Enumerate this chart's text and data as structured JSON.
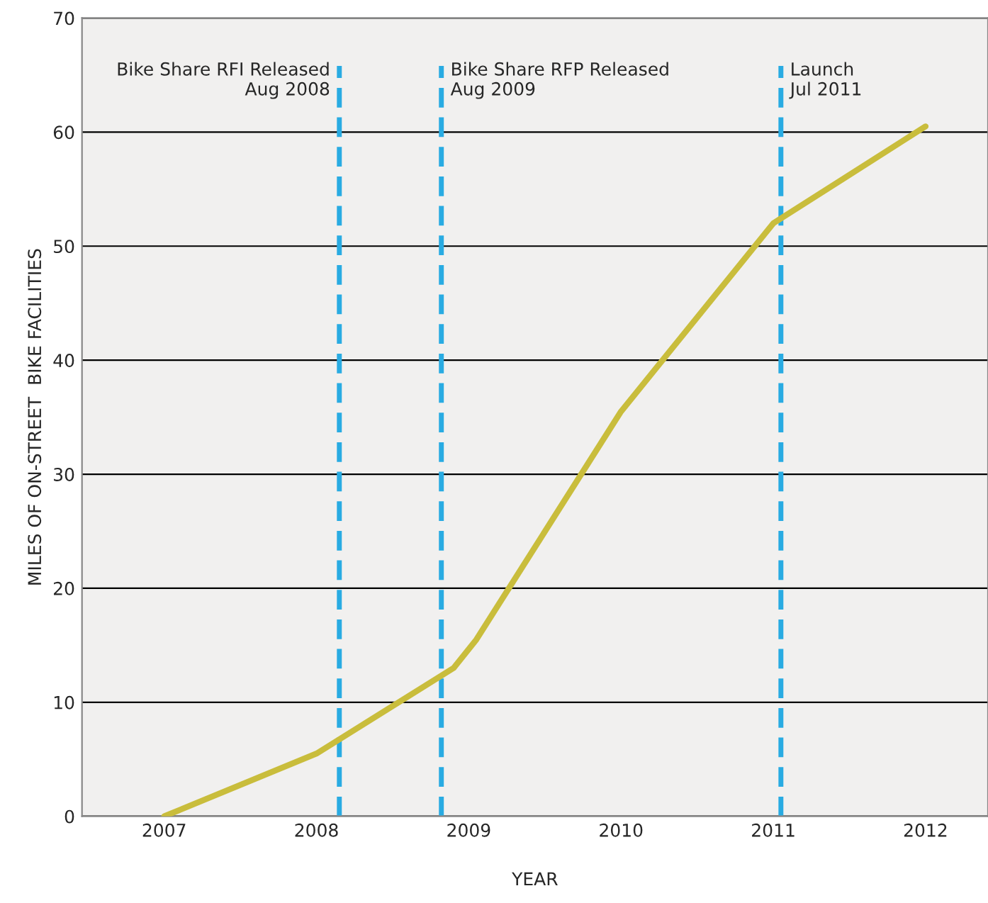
{
  "chart_data": {
    "type": "line",
    "xlabel": "YEAR",
    "ylabel": "MILES OF ON-STREET  BIKE FACILITIES",
    "x": [
      2007,
      2008,
      2008.9,
      2009.05,
      2010,
      2011,
      2012
    ],
    "series": [
      {
        "color": "#c9bd3c",
        "values": [
          0,
          5.5,
          13,
          15.5,
          35.5,
          52,
          60.5
        ]
      }
    ],
    "xlim": [
      2006.46,
      2012.41
    ],
    "xticks": [
      2007,
      2008,
      2009,
      2010,
      2011,
      2012
    ],
    "ylim": [
      0,
      70
    ],
    "yticks": [
      0,
      10,
      20,
      30,
      40,
      50,
      60,
      70
    ],
    "grid": "y",
    "marker": "none",
    "line_style": "solid",
    "ref_lines": [
      {
        "axis": "x",
        "value": 2008.15,
        "label": "Bike Share RFI Released\nAug 2008",
        "color": "#29abe2",
        "line_style": "dashed"
      },
      {
        "axis": "x",
        "value": 2008.82,
        "label": "Bike Share RFP Released\nAug 2009",
        "color": "#29abe2",
        "line_style": "dashed"
      },
      {
        "axis": "x",
        "value": 2011.05,
        "label": "Launch\nJul 2011",
        "color": "#29abe2",
        "line_style": "dashed"
      }
    ]
  }
}
